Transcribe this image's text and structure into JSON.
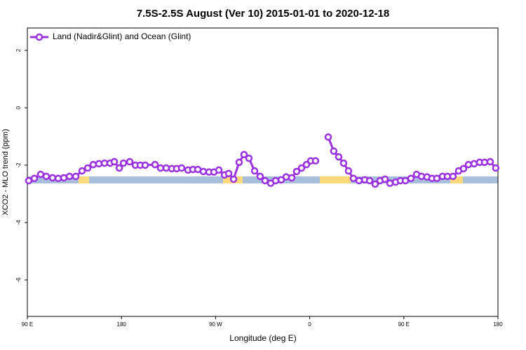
{
  "chart_data": {
    "type": "line",
    "title": "7.5S-2.5S August (Ver 10)   2015-01-01 to 2020-12-18",
    "x_label": "Longitude (deg E)",
    "y_label": "XCO2 - MLO trend (ppm)",
    "x": [
      91.3,
      96.7,
      102.7,
      108.1,
      114.1,
      119.5,
      124.9,
      130.3,
      136.3,
      142.3,
      147.7,
      153.0,
      158.4,
      163.8,
      169.1,
      173.2,
      177.9,
      181.9,
      187.9,
      193.3,
      198.0,
      202.7,
      212.1,
      217.4,
      222.8,
      228.1,
      232.8,
      237.5,
      243.6,
      248.3,
      253.0,
      258.3,
      263.7,
      268.4,
      273.1,
      278.5,
      282.5,
      287.2,
      292.5,
      297.2,
      301.9,
      307.3,
      312.6,
      317.3,
      322.7,
      327.4,
      332.8,
      337.5,
      342.8,
      347.5,
      352.2,
      356.9,
      361.0,
      365.6,
      372.0,
      377.7,
      383.0,
      387.7,
      392.4,
      397.1,
      401.8,
      407.2,
      412.6,
      417.3,
      422.6,
      427.3,
      432.0,
      436.7,
      442.1,
      446.8,
      451.5,
      456.8,
      462.2,
      466.9,
      472.2,
      476.9,
      481.6,
      487.0,
      491.7,
      497.0,
      502.4,
      507.1,
      511.8,
      517.2,
      522.5,
      527.2,
      532.6,
      537.9
    ],
    "series": [
      {
        "name": "Land (Nadir&Glint) and Ocean (Glint)",
        "color": "#9b30e0",
        "values": [
          -2.54,
          -2.46,
          -2.32,
          -2.39,
          -2.44,
          -2.46,
          -2.44,
          -2.39,
          -2.39,
          -2.2,
          -2.1,
          -1.98,
          -1.95,
          -1.93,
          -1.93,
          -1.88,
          -2.1,
          -1.93,
          -1.88,
          -2.0,
          -2.0,
          -2.0,
          -1.98,
          -2.1,
          -2.1,
          -2.12,
          -2.12,
          -2.1,
          -2.17,
          -2.15,
          -2.15,
          -2.22,
          -2.24,
          -2.24,
          -2.17,
          -2.34,
          -2.29,
          -2.49,
          -1.9,
          -1.63,
          -1.76,
          -2.2,
          -2.39,
          -2.54,
          -2.63,
          -2.54,
          -2.51,
          -2.41,
          -2.44,
          -2.22,
          -2.1,
          -1.98,
          -1.85,
          -1.85,
          null,
          -1.02,
          -1.51,
          -1.71,
          -1.93,
          -2.2,
          -2.46,
          -2.54,
          -2.51,
          -2.54,
          -2.66,
          -2.54,
          -2.49,
          -2.63,
          -2.59,
          -2.54,
          -2.54,
          -2.46,
          -2.32,
          -2.39,
          -2.41,
          -2.46,
          -2.46,
          -2.39,
          -2.39,
          -2.39,
          -2.2,
          -2.12,
          -1.98,
          -1.95,
          -1.9,
          -1.9,
          -1.88,
          -2.1
        ]
      }
    ],
    "xlim": [
      90,
      540
    ],
    "xticks": [
      {
        "value": 90,
        "label": "90 E"
      },
      180,
      {
        "value": 270,
        "label": "90 W"
      },
      {
        "value": 360,
        "label": "0"
      },
      {
        "value": 450,
        "label": "90 E"
      },
      {
        "value": 540,
        "label": "180"
      }
    ],
    "ylim": [
      -7.27,
      2.78
    ],
    "yticks": [
      2,
      0,
      -2,
      -4,
      -6
    ],
    "legend": "top-left"
  }
}
